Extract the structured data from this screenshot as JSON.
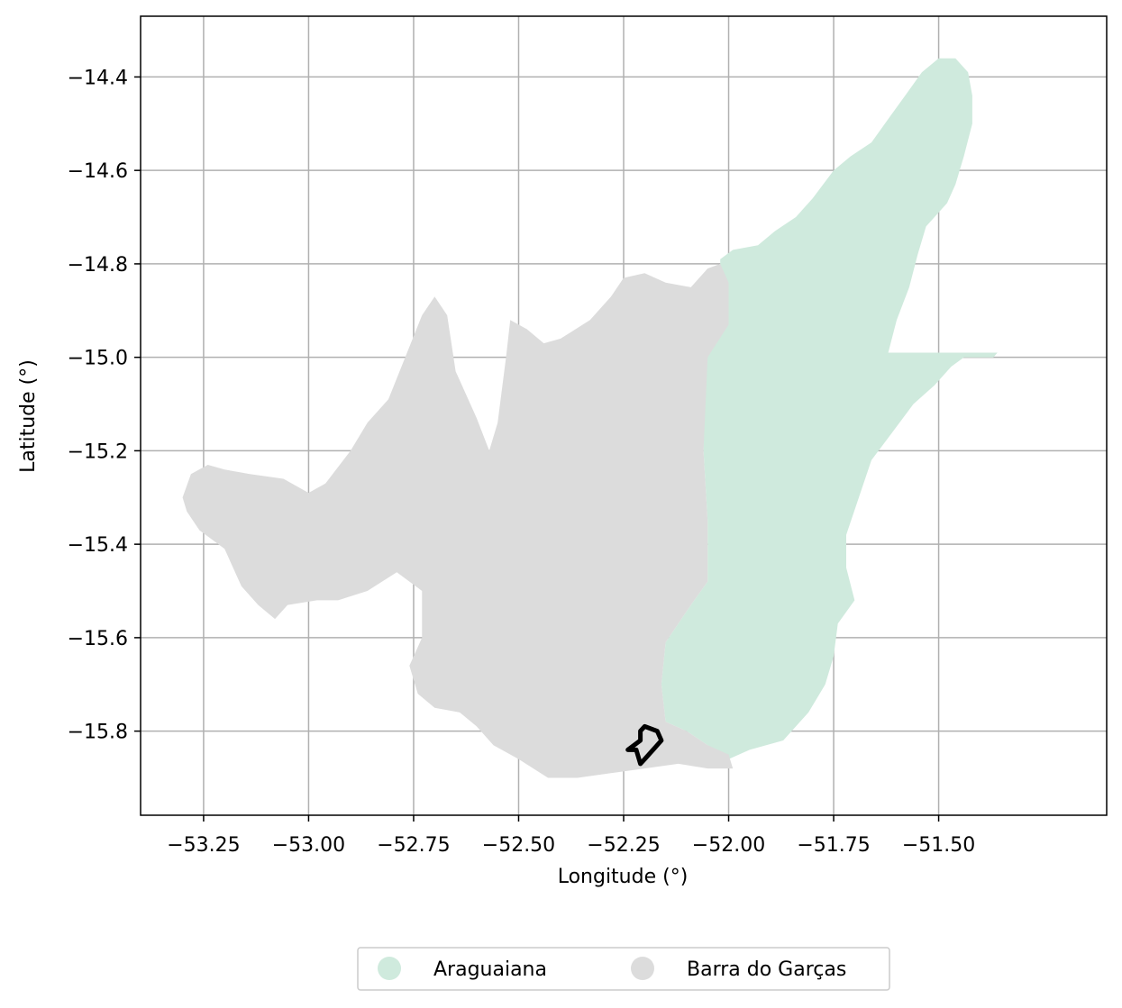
{
  "chart_data": {
    "type": "map",
    "xlabel": "Longitude (°)",
    "ylabel": "Latitude (°)",
    "xlim": [
      -53.4,
      -51.1
    ],
    "ylim": [
      -15.98,
      -14.27
    ],
    "x_ticks": [
      -53.25,
      -53.0,
      -52.75,
      -52.5,
      -52.25,
      -52.0,
      -51.75,
      -51.5
    ],
    "x_tick_labels": [
      "−53.25",
      "−53.00",
      "−52.75",
      "−52.50",
      "−52.25",
      "−52.00",
      "−51.75",
      "−51.50"
    ],
    "y_ticks": [
      -14.4,
      -14.6,
      -14.8,
      -15.0,
      -15.2,
      -15.4,
      -15.6,
      -15.8
    ],
    "y_tick_labels": [
      "−14.4",
      "−14.6",
      "−14.8",
      "−15.0",
      "−15.2",
      "−15.4",
      "−15.6",
      "−15.8"
    ],
    "grid": true,
    "legend_position": "bottom-center",
    "regions": [
      {
        "name": "Araguaiana",
        "color": "#cfeadd",
        "polygon": [
          [
            -52.02,
            -14.79
          ],
          [
            -51.99,
            -14.77
          ],
          [
            -51.93,
            -14.76
          ],
          [
            -51.89,
            -14.73
          ],
          [
            -51.84,
            -14.7
          ],
          [
            -51.8,
            -14.66
          ],
          [
            -51.75,
            -14.6
          ],
          [
            -51.71,
            -14.57
          ],
          [
            -51.66,
            -14.54
          ],
          [
            -51.62,
            -14.49
          ],
          [
            -51.58,
            -14.44
          ],
          [
            -51.54,
            -14.39
          ],
          [
            -51.5,
            -14.36
          ],
          [
            -51.46,
            -14.36
          ],
          [
            -51.43,
            -14.39
          ],
          [
            -51.42,
            -14.44
          ],
          [
            -51.42,
            -14.5
          ],
          [
            -51.44,
            -14.57
          ],
          [
            -51.46,
            -14.63
          ],
          [
            -51.48,
            -14.67
          ],
          [
            -51.53,
            -14.72
          ],
          [
            -51.55,
            -14.78
          ],
          [
            -51.57,
            -14.85
          ],
          [
            -51.6,
            -14.92
          ],
          [
            -51.62,
            -14.99
          ],
          [
            -51.36,
            -14.99
          ],
          [
            -51.37,
            -15.0
          ],
          [
            -51.44,
            -15.0
          ],
          [
            -51.47,
            -15.02
          ],
          [
            -51.51,
            -15.06
          ],
          [
            -51.56,
            -15.1
          ],
          [
            -51.61,
            -15.16
          ],
          [
            -51.66,
            -15.22
          ],
          [
            -51.69,
            -15.3
          ],
          [
            -51.72,
            -15.38
          ],
          [
            -51.72,
            -15.45
          ],
          [
            -51.7,
            -15.52
          ],
          [
            -51.74,
            -15.57
          ],
          [
            -51.75,
            -15.64
          ],
          [
            -51.77,
            -15.7
          ],
          [
            -51.81,
            -15.76
          ],
          [
            -51.87,
            -15.82
          ],
          [
            -51.95,
            -15.84
          ],
          [
            -52.0,
            -15.86
          ],
          [
            -52.05,
            -15.83
          ],
          [
            -52.1,
            -15.8
          ],
          [
            -52.15,
            -15.78
          ],
          [
            -52.16,
            -15.7
          ],
          [
            -52.15,
            -15.61
          ],
          [
            -52.09,
            -15.53
          ],
          [
            -52.05,
            -15.48
          ],
          [
            -52.05,
            -15.35
          ],
          [
            -52.06,
            -15.2
          ],
          [
            -52.06,
            -15.0
          ],
          [
            -52.02,
            -14.93
          ]
        ]
      },
      {
        "name": "Barra do Garças",
        "color": "#dcdcdc",
        "polygon": [
          [
            -53.3,
            -15.3
          ],
          [
            -53.28,
            -15.25
          ],
          [
            -53.24,
            -15.23
          ],
          [
            -53.2,
            -15.24
          ],
          [
            -53.14,
            -15.25
          ],
          [
            -53.06,
            -15.26
          ],
          [
            -53.0,
            -15.29
          ],
          [
            -52.96,
            -15.27
          ],
          [
            -52.9,
            -15.2
          ],
          [
            -52.86,
            -15.14
          ],
          [
            -52.81,
            -15.09
          ],
          [
            -52.77,
            -15.0
          ],
          [
            -52.73,
            -14.91
          ],
          [
            -52.7,
            -14.87
          ],
          [
            -52.67,
            -14.91
          ],
          [
            -52.65,
            -15.03
          ],
          [
            -52.6,
            -15.13
          ],
          [
            -52.57,
            -15.2
          ],
          [
            -52.55,
            -15.14
          ],
          [
            -52.53,
            -15.0
          ],
          [
            -52.52,
            -14.92
          ],
          [
            -52.48,
            -14.94
          ],
          [
            -52.44,
            -14.97
          ],
          [
            -52.4,
            -14.96
          ],
          [
            -52.33,
            -14.92
          ],
          [
            -52.28,
            -14.87
          ],
          [
            -52.25,
            -14.83
          ],
          [
            -52.2,
            -14.82
          ],
          [
            -52.15,
            -14.84
          ],
          [
            -52.09,
            -14.85
          ],
          [
            -52.05,
            -14.81
          ],
          [
            -52.02,
            -14.8
          ],
          [
            -52.0,
            -14.84
          ],
          [
            -52.0,
            -14.93
          ],
          [
            -52.05,
            -15.0
          ],
          [
            -52.06,
            -15.2
          ],
          [
            -52.05,
            -15.35
          ],
          [
            -52.05,
            -15.48
          ],
          [
            -52.09,
            -15.53
          ],
          [
            -52.15,
            -15.61
          ],
          [
            -52.16,
            -15.7
          ],
          [
            -52.15,
            -15.78
          ],
          [
            -52.1,
            -15.8
          ],
          [
            -52.05,
            -15.83
          ],
          [
            -52.0,
            -15.85
          ],
          [
            -51.99,
            -15.88
          ],
          [
            -52.05,
            -15.88
          ],
          [
            -52.12,
            -15.87
          ],
          [
            -52.2,
            -15.88
          ],
          [
            -52.28,
            -15.89
          ],
          [
            -52.36,
            -15.9
          ],
          [
            -52.43,
            -15.9
          ],
          [
            -52.5,
            -15.86
          ],
          [
            -52.56,
            -15.83
          ],
          [
            -52.6,
            -15.79
          ],
          [
            -52.64,
            -15.76
          ],
          [
            -52.7,
            -15.75
          ],
          [
            -52.74,
            -15.72
          ],
          [
            -52.76,
            -15.66
          ],
          [
            -52.73,
            -15.6
          ],
          [
            -52.73,
            -15.5
          ],
          [
            -52.79,
            -15.46
          ],
          [
            -52.86,
            -15.5
          ],
          [
            -52.93,
            -15.52
          ],
          [
            -52.98,
            -15.52
          ],
          [
            -53.05,
            -15.53
          ],
          [
            -53.08,
            -15.56
          ],
          [
            -53.12,
            -15.53
          ],
          [
            -53.16,
            -15.49
          ],
          [
            -53.2,
            -15.41
          ],
          [
            -53.26,
            -15.37
          ],
          [
            -53.29,
            -15.33
          ]
        ]
      }
    ],
    "outline": {
      "color": "#000000",
      "path": [
        [
          -52.2,
          -15.79
        ],
        [
          -52.17,
          -15.8
        ],
        [
          -52.16,
          -15.82
        ],
        [
          -52.18,
          -15.84
        ],
        [
          -52.2,
          -15.86
        ],
        [
          -52.21,
          -15.87
        ],
        [
          -52.22,
          -15.84
        ],
        [
          -52.24,
          -15.84
        ],
        [
          -52.21,
          -15.82
        ],
        [
          -52.21,
          -15.8
        ],
        [
          -52.2,
          -15.79
        ]
      ]
    },
    "legend": [
      "Araguaiana",
      "Barra do Garças"
    ]
  }
}
